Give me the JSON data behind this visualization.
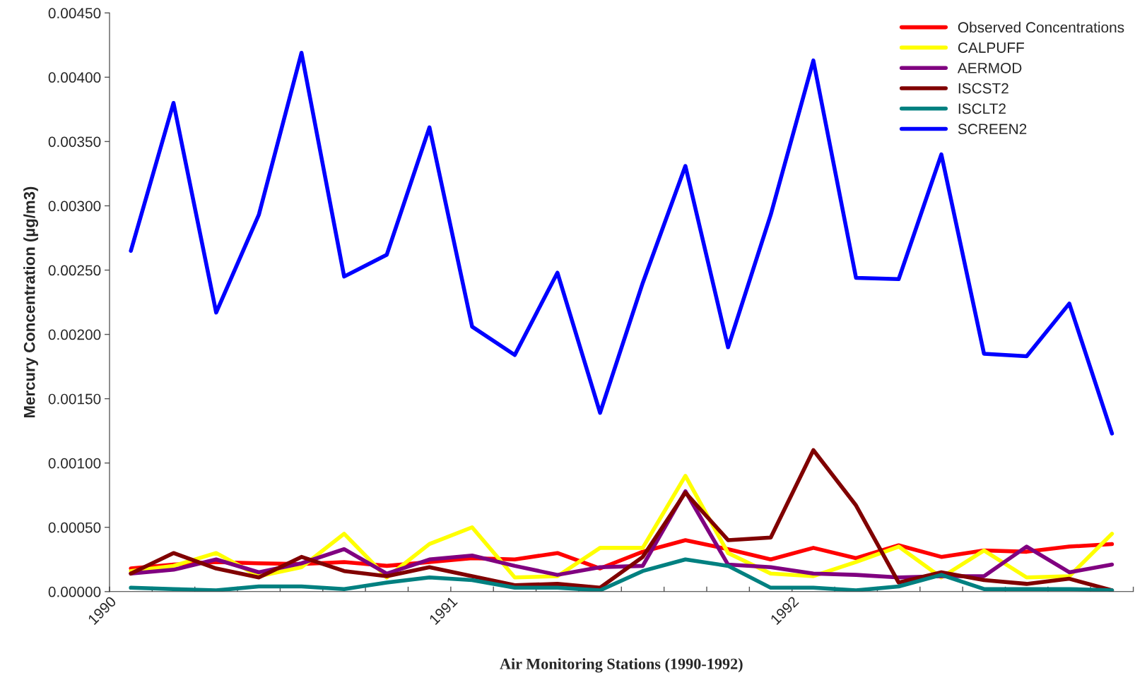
{
  "chart_data": {
    "type": "line",
    "xlabel": "Air Monitoring Stations (1990-1992)",
    "ylabel": "Mercury Concentration (µg/m3)",
    "x": [
      1990.0625,
      1990.1875,
      1990.3125,
      1990.4375,
      1990.5625,
      1990.6875,
      1990.8125,
      1990.9375,
      1991.0625,
      1991.1875,
      1991.3125,
      1991.4375,
      1991.5625,
      1991.6875,
      1991.8125,
      1991.9375,
      1992.0625,
      1992.1875,
      1992.3125,
      1992.4375,
      1992.5625,
      1992.6875,
      1992.8125,
      1992.9375
    ],
    "xlim": [
      1990,
      1993
    ],
    "xticks": [
      1990,
      {
        "value": 1990.125,
        "label": null
      },
      {
        "value": 1990.25,
        "label": null
      },
      {
        "value": 1990.375,
        "label": null
      },
      {
        "value": 1990.5,
        "label": null
      },
      {
        "value": 1990.625,
        "label": null
      },
      {
        "value": 1990.75,
        "label": null
      },
      {
        "value": 1990.875,
        "label": null
      },
      1991,
      {
        "value": 1991.125,
        "label": null
      },
      {
        "value": 1991.25,
        "label": null
      },
      {
        "value": 1991.375,
        "label": null
      },
      {
        "value": 1991.5,
        "label": null
      },
      {
        "value": 1991.625,
        "label": null
      },
      {
        "value": 1991.75,
        "label": null
      },
      {
        "value": 1991.875,
        "label": null
      },
      1992,
      {
        "value": 1992.125,
        "label": null
      },
      {
        "value": 1992.25,
        "label": null
      },
      {
        "value": 1992.375,
        "label": null
      },
      {
        "value": 1992.5,
        "label": null
      },
      {
        "value": 1992.625,
        "label": null
      },
      {
        "value": 1992.75,
        "label": null
      },
      {
        "value": 1992.875,
        "label": null
      },
      {
        "value": 1993,
        "label": null
      }
    ],
    "series": [
      {
        "name": "Observed Concentrations",
        "color": "#ff0000",
        "values": [
          0.00018,
          0.00021,
          0.00023,
          0.00022,
          0.000215,
          0.00023,
          0.0002,
          0.00023,
          0.00026,
          0.00025,
          0.0003,
          0.00018,
          0.00031,
          0.0004,
          0.00033,
          0.00025,
          0.00034,
          0.00026,
          0.00036,
          0.00027,
          0.00032,
          0.00031,
          0.00035,
          0.00037
        ]
      },
      {
        "name": "CALPUFF",
        "color": "#ffff00",
        "values": [
          0.00016,
          0.0002,
          0.0003,
          0.00012,
          0.00019,
          0.00045,
          0.00011,
          0.00037,
          0.0005,
          0.00011,
          0.00012,
          0.00034,
          0.00034,
          0.0009,
          0.0003,
          0.00014,
          0.00012,
          0.00023,
          0.00035,
          0.00011,
          0.00032,
          0.00011,
          0.00012,
          0.00045
        ]
      },
      {
        "name": "AERMOD",
        "color": "#800080",
        "values": [
          0.00014,
          0.00017,
          0.00025,
          0.00015,
          0.00022,
          0.00033,
          0.00014,
          0.00025,
          0.00028,
          0.0002,
          0.00013,
          0.00019,
          0.0002,
          0.00078,
          0.00021,
          0.00019,
          0.00014,
          0.00013,
          0.00011,
          0.00012,
          0.00012,
          0.00035,
          0.00015,
          0.00021
        ]
      },
      {
        "name": "ISCST2",
        "color": "#800000",
        "values": [
          0.00014,
          0.0003,
          0.00018,
          0.00011,
          0.00027,
          0.00016,
          0.00012,
          0.00019,
          0.00012,
          5e-05,
          6e-05,
          3e-05,
          0.00027,
          0.00077,
          0.0004,
          0.00042,
          0.0011,
          0.00067,
          7e-05,
          0.00015,
          9e-05,
          6e-05,
          0.0001,
          1e-05
        ]
      },
      {
        "name": "ISCLT2",
        "color": "#008080",
        "values": [
          3e-05,
          2e-05,
          1e-05,
          4e-05,
          4e-05,
          2e-05,
          7e-05,
          0.00011,
          9e-05,
          3e-05,
          3e-05,
          1e-05,
          0.00016,
          0.00025,
          0.0002,
          3e-05,
          3e-05,
          1e-05,
          4e-05,
          0.00013,
          2e-05,
          2e-05,
          2e-05,
          1e-05
        ]
      },
      {
        "name": "SCREEN2",
        "color": "#0000ff",
        "values": [
          0.00265,
          0.0038,
          0.00217,
          0.00293,
          0.00419,
          0.00245,
          0.00262,
          0.00361,
          0.00206,
          0.00184,
          0.00248,
          0.00139,
          0.0024,
          0.00331,
          0.0019,
          0.00293,
          0.00413,
          0.00244,
          0.00243,
          0.0034,
          0.00185,
          0.00183,
          0.00224,
          0.00123
        ]
      }
    ],
    "ylim": [
      0,
      0.0045
    ],
    "yticks": [
      {
        "value": 0,
        "label": "0.00000"
      },
      {
        "value": 0.0005,
        "label": "0.00050"
      },
      {
        "value": 0.001,
        "label": "0.00100"
      },
      {
        "value": 0.0015,
        "label": "0.00150"
      },
      {
        "value": 0.002,
        "label": "0.00200"
      },
      {
        "value": 0.0025,
        "label": "0.00250"
      },
      {
        "value": 0.003,
        "label": "0.00300"
      },
      {
        "value": 0.0035,
        "label": "0.00350"
      },
      {
        "value": 0.004,
        "label": "0.00400"
      },
      {
        "value": 0.0045,
        "label": "0.00450"
      }
    ],
    "grid": false,
    "legend": "top right",
    "marker": "none",
    "line_style": "solid"
  }
}
